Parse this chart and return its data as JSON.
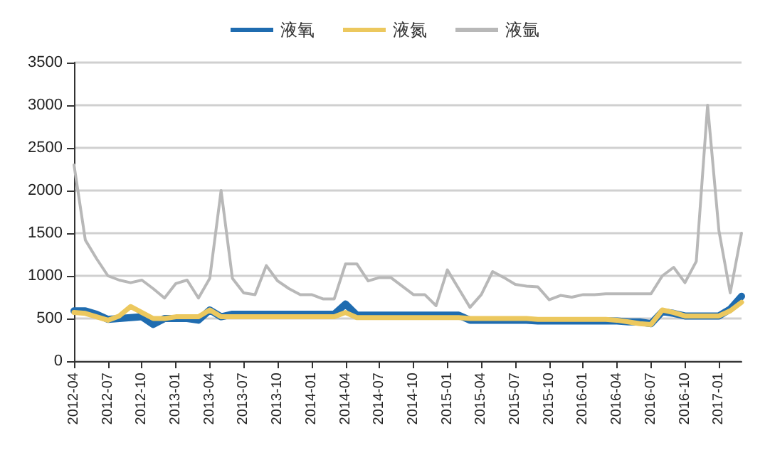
{
  "chart_data": {
    "type": "line",
    "categories": [
      "2012-04",
      null,
      null,
      "2012-07",
      null,
      null,
      "2012-10",
      null,
      null,
      "2013-01",
      null,
      null,
      "2013-04",
      null,
      null,
      "2013-07",
      null,
      null,
      "2013-10",
      null,
      null,
      "2014-01",
      null,
      null,
      "2014-04",
      null,
      null,
      "2014-07",
      null,
      null,
      "2014-10",
      null,
      null,
      "2015-01",
      null,
      null,
      "2015-04",
      null,
      null,
      "2015-07",
      null,
      null,
      "2015-10",
      null,
      null,
      "2016-01",
      null,
      null,
      "2016-04",
      null,
      null,
      "2016-07",
      null,
      null,
      "2016-10",
      null,
      null,
      "2017-01",
      null,
      null
    ],
    "series": [
      {
        "name": "液氧",
        "color": "#1f6cb0",
        "values": [
          590,
          590,
          550,
          490,
          500,
          510,
          520,
          430,
          500,
          500,
          500,
          480,
          600,
          520,
          550,
          550,
          550,
          550,
          550,
          550,
          550,
          550,
          550,
          550,
          670,
          540,
          540,
          540,
          540,
          540,
          540,
          540,
          540,
          540,
          540,
          480,
          480,
          480,
          480,
          480,
          480,
          470,
          470,
          470,
          470,
          470,
          470,
          470,
          470,
          460,
          460,
          440,
          580,
          560,
          530,
          530,
          530,
          530,
          610,
          760
        ]
      },
      {
        "name": "液氮",
        "color": "#ecc85e",
        "values": [
          570,
          560,
          520,
          480,
          530,
          640,
          570,
          500,
          500,
          520,
          520,
          520,
          600,
          520,
          520,
          520,
          520,
          520,
          520,
          520,
          520,
          520,
          520,
          520,
          570,
          510,
          510,
          510,
          510,
          510,
          510,
          510,
          510,
          510,
          510,
          500,
          500,
          500,
          500,
          500,
          500,
          490,
          490,
          490,
          490,
          490,
          490,
          490,
          480,
          460,
          440,
          430,
          600,
          570,
          530,
          530,
          530,
          530,
          590,
          690
        ]
      },
      {
        "name": "液氩",
        "color": "#b8b8b8",
        "values": [
          2300,
          1420,
          1200,
          1000,
          950,
          920,
          950,
          850,
          740,
          910,
          950,
          740,
          970,
          2000,
          970,
          800,
          780,
          1120,
          940,
          850,
          780,
          780,
          730,
          730,
          1140,
          1140,
          940,
          980,
          980,
          880,
          780,
          780,
          650,
          1070,
          850,
          630,
          780,
          1050,
          980,
          900,
          880,
          870,
          720,
          770,
          750,
          780,
          780,
          790,
          790,
          790,
          790,
          790,
          1000,
          1100,
          920,
          1170,
          3000,
          1530,
          800,
          1500
        ]
      }
    ],
    "ylim": [
      0,
      3500
    ],
    "yticks": [
      0,
      500,
      1000,
      1500,
      2000,
      2500,
      3000,
      3500
    ],
    "grid": "y",
    "legend": "top",
    "marker": "none",
    "line_style": "solid"
  }
}
